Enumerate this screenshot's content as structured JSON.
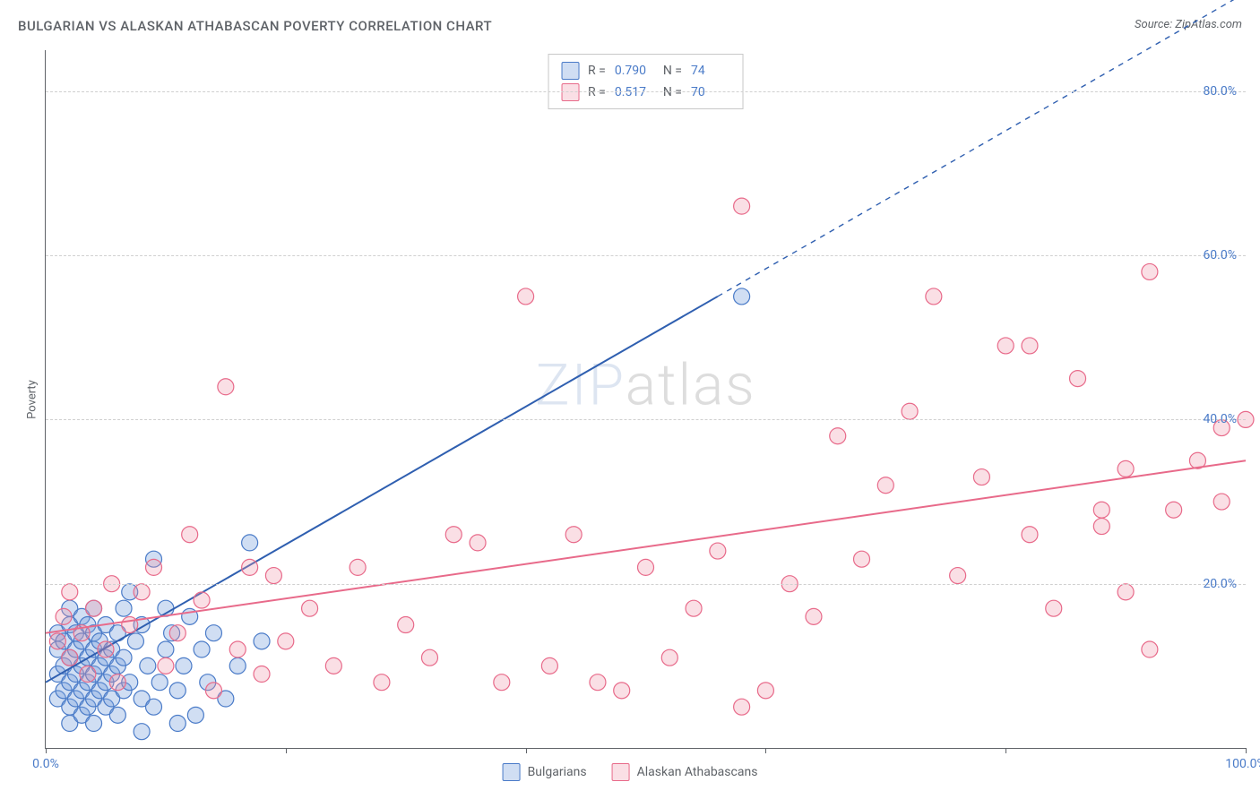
{
  "title": "BULGARIAN VS ALASKAN ATHABASCAN POVERTY CORRELATION CHART",
  "source": "Source: ZipAtlas.com",
  "ylabel": "Poverty",
  "watermark": {
    "part1": "ZIP",
    "part2": "atlas"
  },
  "chart": {
    "type": "scatter",
    "xlim": [
      0,
      100
    ],
    "ylim": [
      0,
      85
    ],
    "xtick_positions": [
      0,
      20,
      40,
      60,
      80,
      100
    ],
    "xtick_labels": [
      "0.0%",
      "",
      "",
      "",
      "",
      "100.0%"
    ],
    "ytick_positions": [
      20,
      40,
      60,
      80
    ],
    "ytick_labels": [
      "20.0%",
      "40.0%",
      "60.0%",
      "80.0%"
    ],
    "grid_color": "#d0d0d0",
    "axis_color": "#5f6368",
    "background_color": "#ffffff",
    "point_radius": 9,
    "point_stroke_width": 1.2,
    "line_width": 2
  },
  "series": [
    {
      "key": "bulgarians",
      "label": "Bulgarians",
      "fill_color": "rgba(120,160,220,0.35)",
      "stroke_color": "#4a7bc8",
      "line_color": "#2f5fb0",
      "R": "0.790",
      "N": "74",
      "trend": {
        "x1": 0,
        "y1": 8,
        "x2": 56,
        "y2": 55,
        "dash_x2": 100,
        "dash_y2": 92
      },
      "points": [
        [
          1,
          6
        ],
        [
          1,
          9
        ],
        [
          1,
          12
        ],
        [
          1,
          14
        ],
        [
          1.5,
          7
        ],
        [
          1.5,
          10
        ],
        [
          1.5,
          13
        ],
        [
          2,
          3
        ],
        [
          2,
          5
        ],
        [
          2,
          8
        ],
        [
          2,
          11
        ],
        [
          2,
          15
        ],
        [
          2,
          17
        ],
        [
          2.5,
          6
        ],
        [
          2.5,
          9
        ],
        [
          2.5,
          12
        ],
        [
          2.5,
          14
        ],
        [
          3,
          4
        ],
        [
          3,
          7
        ],
        [
          3,
          10
        ],
        [
          3,
          13
        ],
        [
          3,
          16
        ],
        [
          3.5,
          5
        ],
        [
          3.5,
          8
        ],
        [
          3.5,
          11
        ],
        [
          3.5,
          15
        ],
        [
          4,
          3
        ],
        [
          4,
          6
        ],
        [
          4,
          9
        ],
        [
          4,
          12
        ],
        [
          4,
          14
        ],
        [
          4,
          17
        ],
        [
          4.5,
          7
        ],
        [
          4.5,
          10
        ],
        [
          4.5,
          13
        ],
        [
          5,
          5
        ],
        [
          5,
          8
        ],
        [
          5,
          11
        ],
        [
          5,
          15
        ],
        [
          5.5,
          6
        ],
        [
          5.5,
          9
        ],
        [
          5.5,
          12
        ],
        [
          6,
          4
        ],
        [
          6,
          10
        ],
        [
          6,
          14
        ],
        [
          6.5,
          7
        ],
        [
          6.5,
          11
        ],
        [
          6.5,
          17
        ],
        [
          7,
          19
        ],
        [
          7,
          8
        ],
        [
          7.5,
          13
        ],
        [
          8,
          2
        ],
        [
          8,
          6
        ],
        [
          8,
          15
        ],
        [
          8.5,
          10
        ],
        [
          9,
          23
        ],
        [
          9,
          5
        ],
        [
          9.5,
          8
        ],
        [
          10,
          17
        ],
        [
          10,
          12
        ],
        [
          10.5,
          14
        ],
        [
          11,
          3
        ],
        [
          11,
          7
        ],
        [
          11.5,
          10
        ],
        [
          12,
          16
        ],
        [
          12.5,
          4
        ],
        [
          13,
          12
        ],
        [
          13.5,
          8
        ],
        [
          14,
          14
        ],
        [
          15,
          6
        ],
        [
          16,
          10
        ],
        [
          17,
          25
        ],
        [
          18,
          13
        ],
        [
          58,
          55
        ]
      ]
    },
    {
      "key": "alaskan_athabascans",
      "label": "Alaskan Athabascans",
      "fill_color": "rgba(240,150,170,0.30)",
      "stroke_color": "#e86a8a",
      "line_color": "#e86a8a",
      "R": "0.517",
      "N": "70",
      "trend": {
        "x1": 0,
        "y1": 14,
        "x2": 100,
        "y2": 35
      },
      "points": [
        [
          1,
          13
        ],
        [
          1.5,
          16
        ],
        [
          2,
          11
        ],
        [
          2,
          19
        ],
        [
          3,
          14
        ],
        [
          3.5,
          9
        ],
        [
          4,
          17
        ],
        [
          5,
          12
        ],
        [
          5.5,
          20
        ],
        [
          6,
          8
        ],
        [
          7,
          15
        ],
        [
          8,
          19
        ],
        [
          9,
          22
        ],
        [
          10,
          10
        ],
        [
          11,
          14
        ],
        [
          12,
          26
        ],
        [
          13,
          18
        ],
        [
          14,
          7
        ],
        [
          15,
          44
        ],
        [
          16,
          12
        ],
        [
          17,
          22
        ],
        [
          18,
          9
        ],
        [
          19,
          21
        ],
        [
          20,
          13
        ],
        [
          22,
          17
        ],
        [
          24,
          10
        ],
        [
          26,
          22
        ],
        [
          28,
          8
        ],
        [
          30,
          15
        ],
        [
          32,
          11
        ],
        [
          34,
          26
        ],
        [
          36,
          25
        ],
        [
          38,
          8
        ],
        [
          40,
          55
        ],
        [
          42,
          10
        ],
        [
          44,
          26
        ],
        [
          46,
          8
        ],
        [
          48,
          7
        ],
        [
          50,
          22
        ],
        [
          52,
          11
        ],
        [
          54,
          17
        ],
        [
          56,
          24
        ],
        [
          58,
          66
        ],
        [
          58,
          5
        ],
        [
          60,
          7
        ],
        [
          62,
          20
        ],
        [
          64,
          16
        ],
        [
          66,
          38
        ],
        [
          68,
          23
        ],
        [
          70,
          32
        ],
        [
          72,
          41
        ],
        [
          74,
          55
        ],
        [
          76,
          21
        ],
        [
          78,
          33
        ],
        [
          80,
          49
        ],
        [
          82,
          26
        ],
        [
          84,
          17
        ],
        [
          86,
          45
        ],
        [
          88,
          29
        ],
        [
          90,
          34
        ],
        [
          90,
          19
        ],
        [
          92,
          12
        ],
        [
          94,
          29
        ],
        [
          96,
          35
        ],
        [
          98,
          30
        ],
        [
          98,
          39
        ],
        [
          100,
          40
        ],
        [
          92,
          58
        ],
        [
          82,
          49
        ],
        [
          88,
          27
        ]
      ]
    }
  ],
  "stats_box": {
    "rows": [
      {
        "series_key": "bulgarians",
        "R_label": "R =",
        "N_label": "N ="
      },
      {
        "series_key": "alaskan_athabascans",
        "R_label": "R =",
        "N_label": "N ="
      }
    ]
  }
}
